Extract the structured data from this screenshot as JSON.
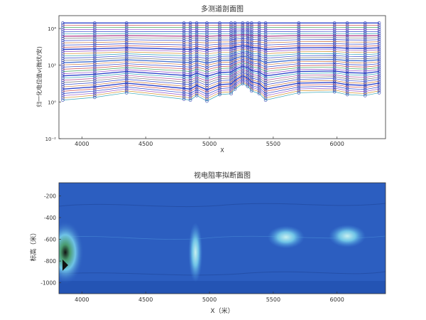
{
  "chart_data": [
    {
      "type": "line",
      "title": "多测道剖面图",
      "xlabel": "X",
      "ylabel": "归一化电位值v(微伏/安)",
      "xlim": [
        3820,
        6380
      ],
      "ylim_log10": [
        -2,
        4.7
      ],
      "y_scale": "log",
      "x_ticks": [
        4000,
        4500,
        5000,
        5500,
        6000
      ],
      "y_ticks": [
        {
          "value": 0.01,
          "label": "10⁻²"
        },
        {
          "value": 1,
          "label": "10⁰"
        },
        {
          "value": 100,
          "label": "10²"
        },
        {
          "value": 10000,
          "label": "10⁴"
        }
      ],
      "x": [
        3850,
        4100,
        4350,
        4800,
        4850,
        4900,
        4980,
        5080,
        5170,
        5200,
        5260,
        5300,
        5330,
        5390,
        5440,
        5700,
        5980,
        6080,
        6220,
        6330
      ],
      "series_count": 36,
      "y_top_log10": 4.3,
      "y_bottom_log10": 0.1,
      "profile_log10_offsets": [
        0.0,
        0.15,
        0.4,
        0.05,
        0.0,
        0.25,
        -0.05,
        0.3,
        0.35,
        0.6,
        0.9,
        0.75,
        0.5,
        0.35,
        0.0,
        0.4,
        0.45,
        0.3,
        0.25,
        0.4
      ],
      "marker": "circle",
      "grid": false,
      "legend": "none"
    },
    {
      "type": "heatmap",
      "title": "视电阻率拟断面图",
      "xlabel": "X（米）",
      "ylabel": "标高（米）",
      "xlim": [
        3820,
        6380
      ],
      "ylim": [
        -1100,
        -80
      ],
      "x_ticks": [
        4000,
        4500,
        5000,
        5500,
        6000
      ],
      "y_ticks": [
        -200,
        -400,
        -600,
        -800,
        -1000
      ],
      "anomalies": [
        {
          "x": 3870,
          "y": -720,
          "level": "high"
        },
        {
          "x": 4890,
          "y": -720,
          "level": "medium"
        },
        {
          "x": 5600,
          "y": -580,
          "level": "medium"
        },
        {
          "x": 6080,
          "y": -570,
          "level": "medium"
        }
      ],
      "grid": false,
      "legend": "none"
    }
  ],
  "colors": {
    "background_field": "#2c5ec0",
    "deep_field": "#1f4fab",
    "mid_contour": "#3f86d8",
    "light_contour": "#6fc3e6",
    "peak_contour": "#c7f0f0",
    "core": "#111111",
    "profile_blue": "#1a33c8",
    "marker": "#2a3ab0"
  }
}
